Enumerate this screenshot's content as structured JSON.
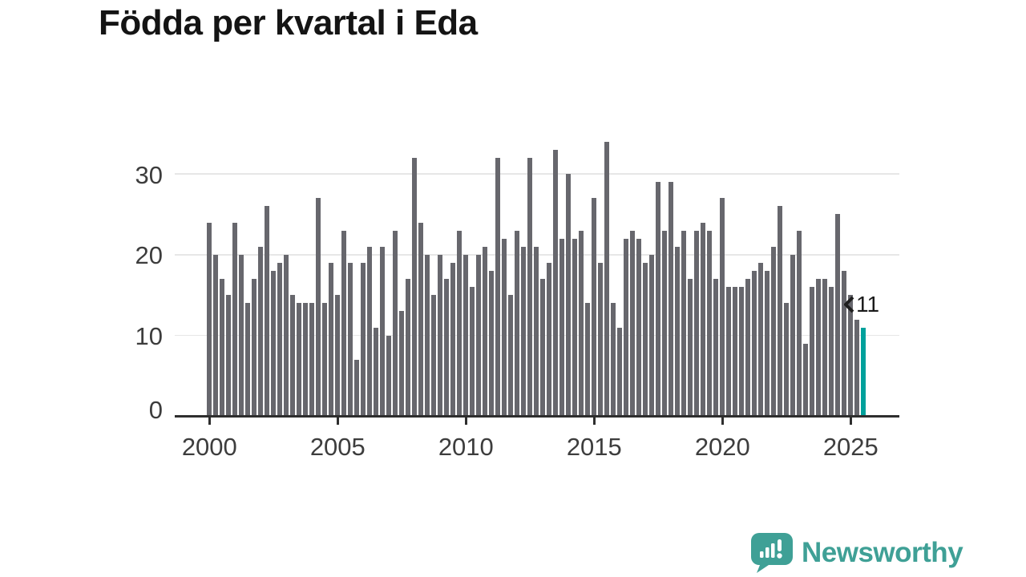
{
  "title": "Födda per kvartal i Eda",
  "chart_data": {
    "type": "bar",
    "title": "Födda per kvartal i Eda",
    "x_unit": "quarter",
    "period_start": "2000 Q1",
    "period_end": "2025 Q3",
    "values": [
      24,
      20,
      17,
      15,
      24,
      20,
      14,
      17,
      21,
      26,
      18,
      19,
      20,
      15,
      14,
      14,
      14,
      27,
      14,
      19,
      15,
      23,
      19,
      7,
      19,
      21,
      11,
      21,
      10,
      23,
      13,
      17,
      32,
      24,
      20,
      15,
      20,
      17,
      19,
      23,
      20,
      16,
      20,
      21,
      18,
      32,
      22,
      15,
      23,
      21,
      32,
      21,
      17,
      19,
      33,
      22,
      30,
      22,
      23,
      14,
      27,
      19,
      34,
      14,
      11,
      22,
      23,
      22,
      19,
      20,
      29,
      23,
      29,
      21,
      23,
      17,
      23,
      24,
      23,
      17,
      27,
      16,
      16,
      16,
      17,
      18,
      19,
      18,
      21,
      26,
      14,
      20,
      23,
      9,
      16,
      17,
      17,
      16,
      25,
      18,
      15,
      12,
      11
    ],
    "highlight_last_bar": true,
    "last_value_label": "11",
    "xticks": [
      "2000",
      "2005",
      "2010",
      "2015",
      "2020",
      "2025"
    ],
    "yticks": [
      0,
      10,
      20,
      30
    ],
    "ylim": [
      0,
      36
    ],
    "grid": true,
    "legend": "none"
  },
  "annotation": {
    "value_label": "11"
  },
  "branding": {
    "logo_text": "Newsworthy"
  },
  "colors": {
    "bar": "#67676d",
    "highlight": "#00a19c",
    "brand": "#3fa096",
    "grid": "#e7e7e7",
    "axis": "#2e2e2e",
    "tick_label": "#3d3d3d",
    "title": "#141414"
  }
}
